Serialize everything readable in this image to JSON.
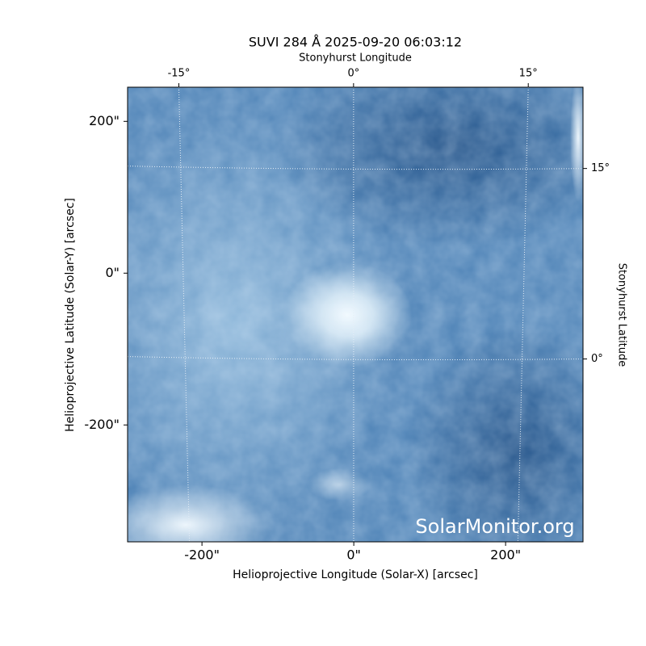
{
  "chart_data": {
    "type": "image",
    "title": "SUVI 284 Å 2025-09-20 06:03:12",
    "xlabel": "Helioprojective Longitude (Solar-X) [arcsec]",
    "ylabel": "Helioprojective Latitude (Solar-Y) [arcsec]",
    "x2label": "Stonyhurst Longitude",
    "y2label": "Stonyhurst Latitude",
    "watermark": "SolarMonitor.org",
    "xlim": [
      -298,
      302
    ],
    "ylim": [
      -354,
      245
    ],
    "xticks": [
      {
        "value": -200,
        "label": "-200\""
      },
      {
        "value": 0,
        "label": "0\""
      },
      {
        "value": 200,
        "label": "200\""
      }
    ],
    "yticks": [
      {
        "value": -200,
        "label": "-200\""
      },
      {
        "value": 0,
        "label": "0\""
      },
      {
        "value": 200,
        "label": "200\""
      }
    ],
    "x2lim": [
      -19.4,
      19.7
    ],
    "x2ticks": [
      {
        "value": -15,
        "label": "-15°"
      },
      {
        "value": 0,
        "label": "0°"
      },
      {
        "value": 15,
        "label": "15°"
      }
    ],
    "y2lim": [
      -14.4,
      21.4
    ],
    "y2ticks": [
      {
        "value": 0,
        "label": "0°"
      },
      {
        "value": 15,
        "label": "15°"
      }
    ],
    "grid": true
  }
}
